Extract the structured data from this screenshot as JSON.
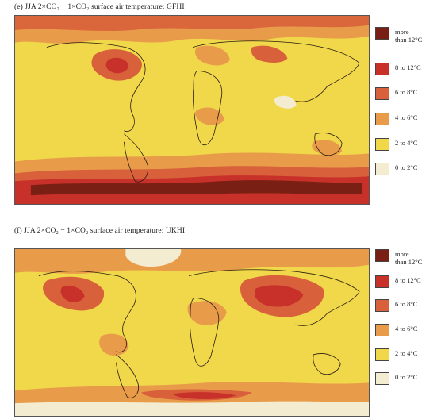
{
  "panels": [
    {
      "id": "e",
      "title": "(e) JJA 2×CO₂ − 1×CO₂ surface air temperature: GFHI",
      "legend": [
        {
          "label": "more\nthan 12°C",
          "color": "#7a1f14"
        },
        {
          "label": "8 to 12°C",
          "color": "#c8302a"
        },
        {
          "label": "6 to 8°C",
          "color": "#d8603a"
        },
        {
          "label": "4 to 6°C",
          "color": "#e89c4a"
        },
        {
          "label": "2 to 4°C",
          "color": "#f0d84a"
        },
        {
          "label": "0 to 2°C",
          "color": "#f4ecd0"
        }
      ]
    },
    {
      "id": "f",
      "title": "(f) JJA 2×CO₂ − 1×CO₂ surface air temperature: UKHI",
      "legend": [
        {
          "label": "more\nthan 12°C",
          "color": "#7a1f14"
        },
        {
          "label": "8 to 12°C",
          "color": "#c8302a"
        },
        {
          "label": "6 to 8°C",
          "color": "#d8603a"
        },
        {
          "label": "4 to 6°C",
          "color": "#e89c4a"
        },
        {
          "label": "2 to 4°C",
          "color": "#f0d84a"
        },
        {
          "label": "0 to 2°C",
          "color": "#f4ecd0"
        }
      ]
    }
  ]
}
